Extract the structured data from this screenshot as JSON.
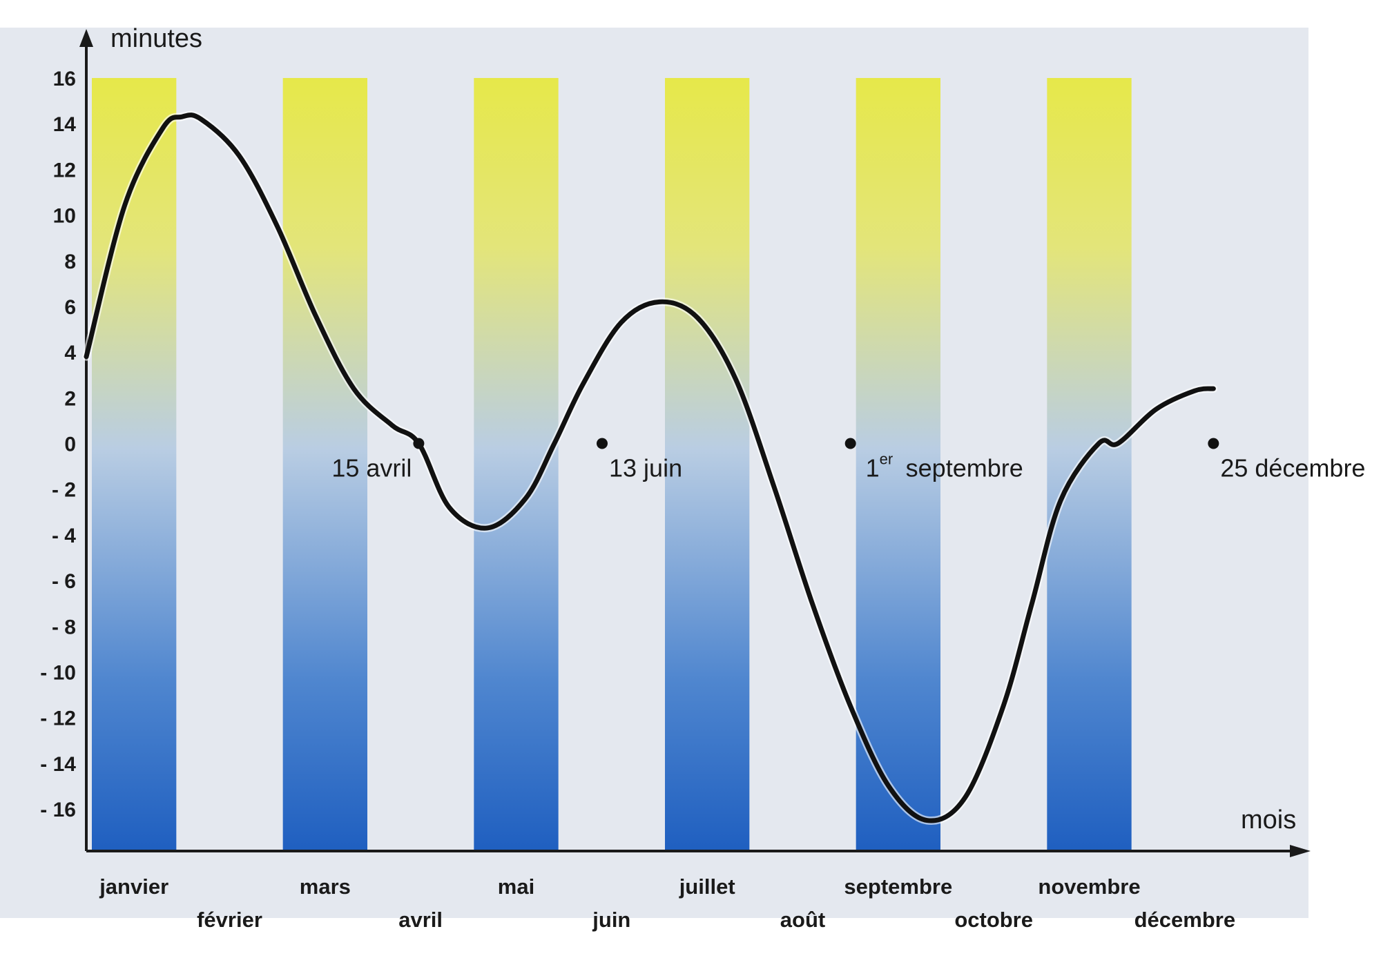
{
  "chart_data": {
    "type": "line",
    "title": "",
    "ylabel": "minutes",
    "xlabel": "mois",
    "ylim": [
      -18,
      17
    ],
    "yticks": [
      16,
      14,
      12,
      10,
      8,
      6,
      4,
      2,
      0,
      -2,
      -4,
      -6,
      -8,
      -10,
      -12,
      -14,
      -16
    ],
    "ytick_labels": [
      "16",
      "14",
      "12",
      "10",
      "8",
      "6",
      "4",
      "2",
      "0",
      "- 2",
      "- 4",
      "- 6",
      "- 8",
      "- 10",
      "- 12",
      "- 14",
      "- 16"
    ],
    "months": [
      "janvier",
      "février",
      "mars",
      "avril",
      "mai",
      "juin",
      "juillet",
      "août",
      "septembre",
      "octobre",
      "novembre",
      "décembre"
    ],
    "grid": false,
    "series": [
      {
        "x": [
          0.0,
          0.4,
          0.8,
          1.0,
          1.2,
          1.6,
          2.0,
          2.4,
          2.8,
          3.2,
          3.48,
          3.8,
          4.2,
          4.6,
          4.9,
          5.2,
          5.6,
          6.0,
          6.4,
          6.8,
          7.2,
          7.6,
          8.0,
          8.4,
          8.8,
          9.2,
          9.6,
          9.9,
          10.2,
          10.6,
          10.8,
          11.2,
          11.6,
          11.8
        ],
        "y": [
          3.8,
          10.4,
          13.8,
          14.3,
          14.2,
          12.6,
          9.5,
          5.6,
          2.4,
          0.8,
          0.0,
          -2.8,
          -3.7,
          -2.4,
          0.0,
          2.6,
          5.3,
          6.2,
          5.5,
          2.8,
          -1.9,
          -7.0,
          -11.5,
          -15.0,
          -16.5,
          -15.5,
          -11.5,
          -7.0,
          -2.5,
          0.0,
          0.0,
          1.5,
          2.3,
          2.4
        ]
      }
    ],
    "annotations": [
      {
        "x": 3.48,
        "y": 0,
        "label": "15 avril"
      },
      {
        "x": 5.4,
        "y": 0,
        "label": "13 juin"
      },
      {
        "x": 8.0,
        "y": 0,
        "label": "septembre",
        "prefix": "1",
        "superscript": "er"
      },
      {
        "x": 11.8,
        "y": 0,
        "label": "25 décembre"
      }
    ],
    "colors": {
      "curve": "#111111",
      "band_top": "#e6e84a",
      "band_mid": "#b9cde3",
      "band_bottom": "#1f5fc0",
      "background": "#e4e8ef",
      "axis": "#1a1a1a"
    }
  }
}
